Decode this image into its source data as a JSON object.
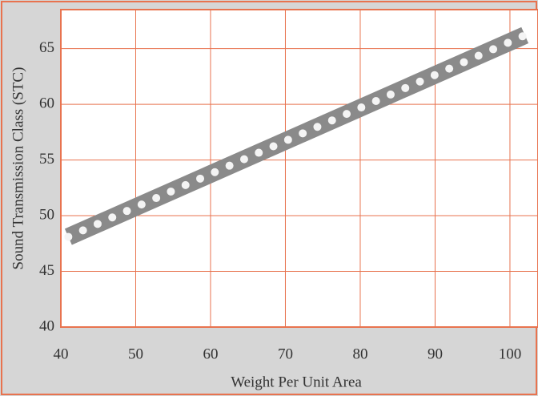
{
  "chart_data": {
    "type": "line",
    "x_label": "Weight Per Unit Area",
    "y_label": "Sound Transmission Class (STC)",
    "x": [
      41,
      102
    ],
    "series": [
      {
        "color": "#8a8a8a",
        "values": [
          48.1,
          66.2
        ]
      }
    ],
    "xlim": [
      40,
      103
    ],
    "xticks": [
      40,
      50,
      60,
      70,
      80,
      90,
      100
    ],
    "ylim": [
      40,
      68.5
    ],
    "yticks": [
      40,
      45,
      50,
      55,
      60,
      65
    ],
    "grid": true,
    "grid_color": "#e8734f"
  }
}
